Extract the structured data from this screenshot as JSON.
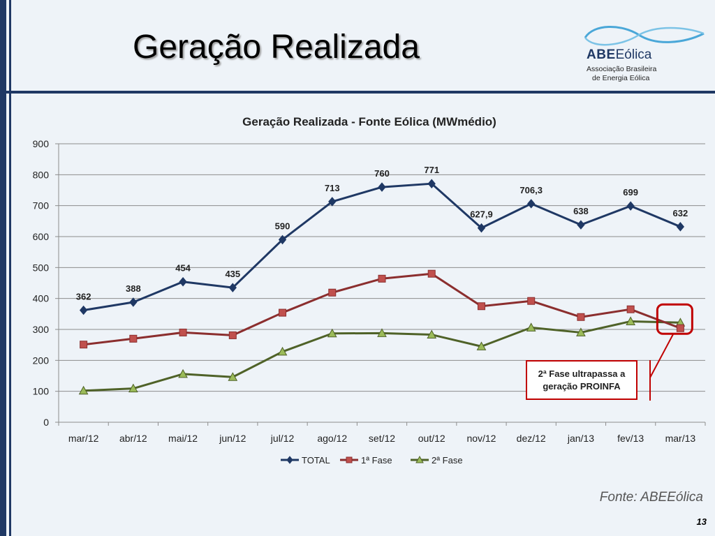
{
  "slide": {
    "title": "Geração Realizada",
    "source": "Fonte: ABEEólica",
    "page_number": "13"
  },
  "logo": {
    "name_bold": "ABE",
    "name_rest": "Eólica",
    "subtitle_line1": "Associação Brasileira",
    "subtitle_line2": "de Energia Eólica"
  },
  "annotation": {
    "line1": "2ª Fase ultrapassa a",
    "line2": "geração PROINFA"
  },
  "colors": {
    "total": "#1f3864",
    "fase1": "#8b2e2e",
    "fase2": "#4f6228",
    "marker1": "#c0504d",
    "marker2": "#9bbb59",
    "highlight": "#c00000"
  },
  "chart_data": {
    "type": "line",
    "title": "Geração Realizada - Fonte Eólica (MWmédio)",
    "categories": [
      "mar/12",
      "abr/12",
      "mai/12",
      "jun/12",
      "jul/12",
      "ago/12",
      "set/12",
      "out/12",
      "nov/12",
      "dez/12",
      "jan/13",
      "fev/13",
      "mar/13"
    ],
    "ylim": [
      0,
      900
    ],
    "yticks": [
      0,
      100,
      200,
      300,
      400,
      500,
      600,
      700,
      800,
      900
    ],
    "grid": true,
    "legend_position": "bottom",
    "series": [
      {
        "name": "TOTAL",
        "values": [
          362,
          388,
          454,
          435,
          590,
          713,
          760,
          771,
          627.9,
          706.3,
          638,
          699,
          632
        ],
        "labels": [
          "362",
          "388",
          "454",
          "435",
          "590",
          "713",
          "760",
          "771",
          "627,9",
          "706,3",
          "638",
          "699",
          "632"
        ]
      },
      {
        "name": "1ª Fase",
        "values": [
          251,
          270,
          290,
          281,
          354,
          419,
          464,
          480,
          375,
          392,
          340,
          365,
          304
        ]
      },
      {
        "name": "2ª Fase",
        "values": [
          102,
          109,
          156,
          146,
          228,
          287,
          288,
          283,
          245,
          306,
          290,
          326,
          322
        ]
      }
    ]
  }
}
